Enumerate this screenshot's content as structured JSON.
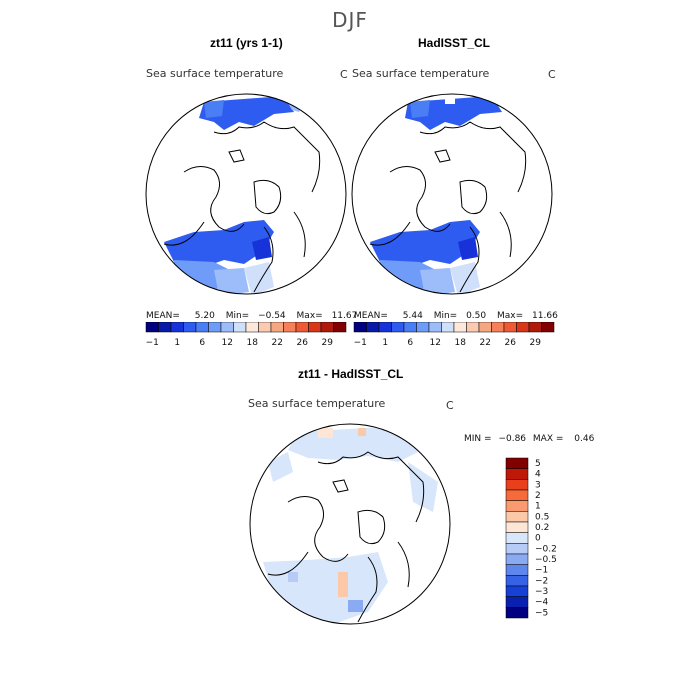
{
  "title": "DJF",
  "panels": {
    "left": {
      "title": "zt11 (yrs 1-1)",
      "variable": "Sea surface temperature",
      "unit": "C",
      "stats": {
        "mean_label": "MEAN=",
        "mean": "5.20",
        "min_label": "Min=",
        "min": "−0.54",
        "max_label": "Max=",
        "max": "11.67"
      }
    },
    "right": {
      "title": "HadISST_CL",
      "variable": "Sea surface temperature",
      "unit": "C",
      "stats": {
        "mean_label": "MEAN=",
        "mean": "5.44",
        "min_label": "Min=",
        "min": "0.50",
        "max_label": "Max=",
        "max": "11.66"
      }
    },
    "diff": {
      "title": "zt11 - HadISST_CL",
      "variable": "Sea surface temperature",
      "unit": "C",
      "stats": {
        "min_label": "MIN =",
        "min": "−0.86",
        "max_label": "MAX =",
        "max": "0.46"
      }
    }
  },
  "colorbar_abs": {
    "colors": [
      "#000080",
      "#0a1aa8",
      "#1632d8",
      "#2e5cf0",
      "#4a7ef5",
      "#6f9cf8",
      "#9dbcfa",
      "#d0e0fb",
      "#fde8dc",
      "#fbcab0",
      "#f7a682",
      "#f5805a",
      "#ee5a36",
      "#d8361b",
      "#b01a0c",
      "#820000"
    ],
    "tick_labels": [
      "−1",
      "1",
      "6",
      "12",
      "18",
      "22",
      "26",
      "29"
    ]
  },
  "colorbar_diff": {
    "colors": [
      "#820000",
      "#c01808",
      "#e8401a",
      "#f76a3a",
      "#f99a70",
      "#fbc8a8",
      "#fde6d6",
      "#d8e6fb",
      "#b6ccf6",
      "#8aaaf2",
      "#5e86ec",
      "#3662e6",
      "#1640d6",
      "#0a20b0",
      "#000080"
    ],
    "tick_labels": [
      "5",
      "4",
      "3",
      "2",
      "1",
      "0.5",
      "0.2",
      "0",
      "−0.2",
      "−0.5",
      "−1",
      "−2",
      "−3",
      "−4",
      "−5"
    ]
  }
}
